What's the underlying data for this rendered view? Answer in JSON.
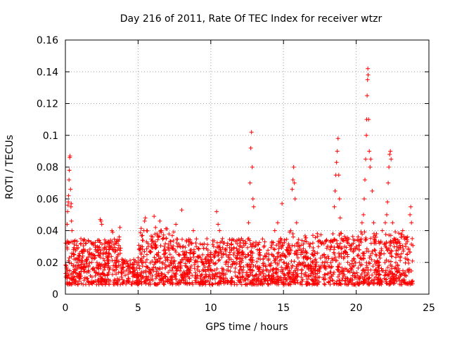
{
  "chart_data": {
    "type": "scatter",
    "title": "Day 216 of 2011, Rate Of TEC Index for receiver wtzr",
    "xlabel": "GPS time / hours",
    "ylabel": "ROTI / TECUs",
    "xlim": [
      0,
      25
    ],
    "ylim": [
      0,
      0.16
    ],
    "x_ticks": [
      "0",
      "5",
      "10",
      "15",
      "20",
      "25"
    ],
    "y_ticks": [
      "0",
      "0.02",
      "0.04",
      "0.06",
      "0.08",
      "0.1",
      "0.12",
      "0.14",
      "0.16"
    ],
    "grid": true,
    "marker": "plus",
    "color": "#ff0000",
    "series": [
      {
        "points": [
          [
            0.05,
            0.018
          ],
          [
            0.1,
            0.032
          ],
          [
            0.12,
            0.044
          ],
          [
            0.15,
            0.052
          ],
          [
            0.18,
            0.056
          ],
          [
            0.2,
            0.058
          ],
          [
            0.22,
            0.062
          ],
          [
            0.25,
            0.072
          ],
          [
            0.27,
            0.078
          ],
          [
            0.3,
            0.086
          ],
          [
            0.32,
            0.087
          ],
          [
            0.35,
            0.066
          ],
          [
            0.38,
            0.055
          ],
          [
            0.4,
            0.057
          ],
          [
            0.42,
            0.046
          ],
          [
            0.45,
            0.04
          ],
          [
            0.5,
            0.033
          ],
          [
            0.55,
            0.028
          ],
          [
            0.6,
            0.025
          ],
          [
            0.7,
            0.022
          ],
          [
            0.8,
            0.02
          ],
          [
            0.9,
            0.018
          ],
          [
            1.0,
            0.021
          ],
          [
            1.1,
            0.016
          ],
          [
            1.2,
            0.024
          ],
          [
            1.3,
            0.019
          ],
          [
            1.4,
            0.017
          ],
          [
            1.5,
            0.022
          ],
          [
            1.6,
            0.018
          ],
          [
            1.7,
            0.025
          ],
          [
            1.8,
            0.02
          ],
          [
            1.9,
            0.016
          ],
          [
            2.0,
            0.024
          ],
          [
            2.1,
            0.027
          ],
          [
            2.2,
            0.03
          ],
          [
            2.3,
            0.034
          ],
          [
            2.4,
            0.047
          ],
          [
            2.45,
            0.046
          ],
          [
            2.5,
            0.044
          ],
          [
            2.6,
            0.026
          ],
          [
            2.7,
            0.021
          ],
          [
            2.8,
            0.018
          ],
          [
            2.9,
            0.023
          ],
          [
            3.0,
            0.028
          ],
          [
            3.1,
            0.034
          ],
          [
            3.2,
            0.04
          ],
          [
            3.25,
            0.039
          ],
          [
            3.3,
            0.028
          ],
          [
            3.4,
            0.021
          ],
          [
            3.5,
            0.02
          ],
          [
            3.6,
            0.024
          ],
          [
            3.7,
            0.036
          ],
          [
            3.75,
            0.042
          ],
          [
            3.8,
            0.029
          ],
          [
            3.9,
            0.022
          ],
          [
            4.0,
            0.017
          ],
          [
            4.2,
            0.015
          ],
          [
            4.4,
            0.017
          ],
          [
            4.6,
            0.019
          ],
          [
            4.8,
            0.021
          ],
          [
            5.0,
            0.023
          ],
          [
            5.1,
            0.028
          ],
          [
            5.2,
            0.03
          ],
          [
            5.3,
            0.034
          ],
          [
            5.4,
            0.04
          ],
          [
            5.45,
            0.046
          ],
          [
            5.5,
            0.048
          ],
          [
            5.6,
            0.04
          ],
          [
            5.7,
            0.03
          ],
          [
            5.8,
            0.027
          ],
          [
            5.9,
            0.031
          ],
          [
            6.0,
            0.036
          ],
          [
            6.1,
            0.049
          ],
          [
            6.2,
            0.042
          ],
          [
            6.3,
            0.038
          ],
          [
            6.4,
            0.036
          ],
          [
            6.5,
            0.046
          ],
          [
            6.6,
            0.04
          ],
          [
            6.7,
            0.035
          ],
          [
            6.8,
            0.03
          ],
          [
            6.9,
            0.026
          ],
          [
            7.0,
            0.022
          ],
          [
            7.1,
            0.018
          ],
          [
            7.2,
            0.015
          ],
          [
            7.3,
            0.019
          ],
          [
            7.4,
            0.023
          ],
          [
            7.5,
            0.021
          ],
          [
            7.6,
            0.044
          ],
          [
            7.7,
            0.03
          ],
          [
            7.8,
            0.025
          ],
          [
            7.9,
            0.02
          ],
          [
            8.0,
            0.053
          ],
          [
            8.1,
            0.03
          ],
          [
            8.2,
            0.025
          ],
          [
            8.4,
            0.021
          ],
          [
            8.6,
            0.023
          ],
          [
            8.8,
            0.04
          ],
          [
            9.0,
            0.03
          ],
          [
            9.2,
            0.024
          ],
          [
            9.4,
            0.02
          ],
          [
            9.6,
            0.017
          ],
          [
            9.8,
            0.021
          ],
          [
            10.0,
            0.025
          ],
          [
            10.2,
            0.03
          ],
          [
            10.4,
            0.052
          ],
          [
            10.5,
            0.044
          ],
          [
            10.6,
            0.04
          ],
          [
            10.8,
            0.035
          ],
          [
            11.0,
            0.028
          ],
          [
            11.2,
            0.024
          ],
          [
            11.4,
            0.022
          ],
          [
            11.6,
            0.026
          ],
          [
            11.8,
            0.034
          ],
          [
            12.0,
            0.03
          ],
          [
            12.2,
            0.025
          ],
          [
            12.4,
            0.032
          ],
          [
            12.6,
            0.045
          ],
          [
            12.7,
            0.07
          ],
          [
            12.75,
            0.092
          ],
          [
            12.8,
            0.102
          ],
          [
            12.85,
            0.08
          ],
          [
            12.9,
            0.06
          ],
          [
            12.95,
            0.055
          ],
          [
            13.0,
            0.03
          ],
          [
            13.2,
            0.028
          ],
          [
            13.4,
            0.022
          ],
          [
            13.6,
            0.018
          ],
          [
            13.8,
            0.015
          ],
          [
            14.0,
            0.014
          ],
          [
            14.2,
            0.033
          ],
          [
            14.4,
            0.04
          ],
          [
            14.6,
            0.045
          ],
          [
            14.8,
            0.035
          ],
          [
            14.9,
            0.057
          ],
          [
            15.0,
            0.02
          ],
          [
            15.2,
            0.018
          ],
          [
            15.4,
            0.015
          ],
          [
            15.5,
            0.04
          ],
          [
            15.6,
            0.066
          ],
          [
            15.65,
            0.072
          ],
          [
            15.7,
            0.08
          ],
          [
            15.75,
            0.07
          ],
          [
            15.8,
            0.06
          ],
          [
            15.9,
            0.045
          ],
          [
            16.0,
            0.03
          ],
          [
            16.2,
            0.025
          ],
          [
            16.4,
            0.02
          ],
          [
            16.6,
            0.022
          ],
          [
            16.8,
            0.03
          ],
          [
            17.0,
            0.025
          ],
          [
            17.2,
            0.022
          ],
          [
            17.4,
            0.03
          ],
          [
            17.6,
            0.032
          ],
          [
            17.8,
            0.025
          ],
          [
            18.0,
            0.02
          ],
          [
            18.2,
            0.028
          ],
          [
            18.4,
            0.038
          ],
          [
            18.5,
            0.055
          ],
          [
            18.55,
            0.065
          ],
          [
            18.6,
            0.075
          ],
          [
            18.65,
            0.083
          ],
          [
            18.7,
            0.09
          ],
          [
            18.75,
            0.098
          ],
          [
            18.8,
            0.075
          ],
          [
            18.85,
            0.06
          ],
          [
            18.9,
            0.048
          ],
          [
            19.0,
            0.035
          ],
          [
            19.2,
            0.03
          ],
          [
            19.4,
            0.025
          ],
          [
            19.6,
            0.028
          ],
          [
            19.8,
            0.032
          ],
          [
            20.0,
            0.03
          ],
          [
            20.2,
            0.028
          ],
          [
            20.4,
            0.045
          ],
          [
            20.5,
            0.05
          ],
          [
            20.55,
            0.06
          ],
          [
            20.6,
            0.072
          ],
          [
            20.65,
            0.085
          ],
          [
            20.7,
            0.1
          ],
          [
            20.72,
            0.11
          ],
          [
            20.75,
            0.125
          ],
          [
            20.78,
            0.135
          ],
          [
            20.8,
            0.142
          ],
          [
            20.82,
            0.138
          ],
          [
            20.85,
            0.11
          ],
          [
            20.9,
            0.09
          ],
          [
            20.95,
            0.08
          ],
          [
            21.0,
            0.085
          ],
          [
            21.1,
            0.065
          ],
          [
            21.2,
            0.045
          ],
          [
            21.4,
            0.038
          ],
          [
            21.6,
            0.032
          ],
          [
            21.8,
            0.04
          ],
          [
            22.0,
            0.045
          ],
          [
            22.1,
            0.05
          ],
          [
            22.15,
            0.058
          ],
          [
            22.2,
            0.07
          ],
          [
            22.25,
            0.08
          ],
          [
            22.3,
            0.088
          ],
          [
            22.35,
            0.09
          ],
          [
            22.4,
            0.085
          ],
          [
            22.5,
            0.045
          ],
          [
            22.6,
            0.035
          ],
          [
            22.8,
            0.03
          ],
          [
            23.0,
            0.032
          ],
          [
            23.1,
            0.038
          ],
          [
            23.2,
            0.04
          ],
          [
            23.4,
            0.03
          ],
          [
            23.5,
            0.025
          ],
          [
            23.6,
            0.028
          ],
          [
            23.7,
            0.05
          ],
          [
            23.75,
            0.055
          ],
          [
            23.8,
            0.045
          ],
          [
            23.85,
            0.035
          ]
        ]
      }
    ],
    "background_noise": {
      "x_range": [
        0,
        23.9
      ],
      "y_baseline_range": [
        0.006,
        0.035
      ],
      "note_free": true
    }
  }
}
